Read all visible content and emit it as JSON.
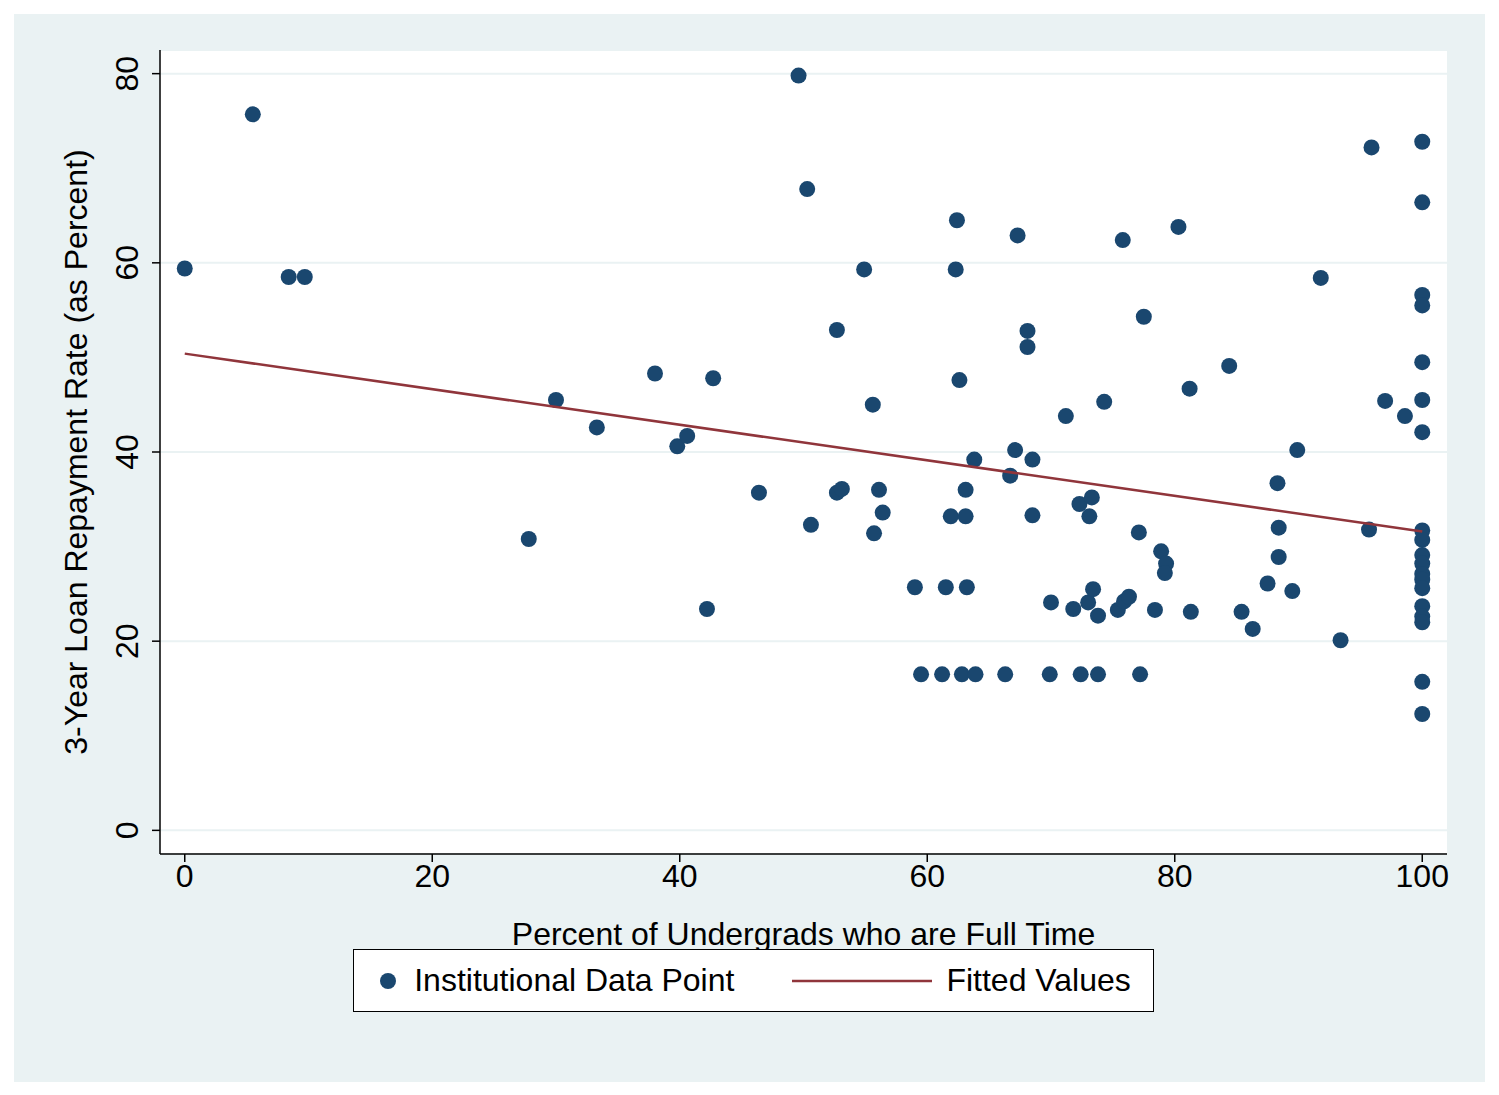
{
  "chart_data": {
    "type": "scatter",
    "x_label": "Percent of Undergrads who are Full Time",
    "y_label": "3-Year Loan Repayment Rate (as Percent)",
    "xlim": [
      -2,
      102
    ],
    "ylim": [
      -2.5,
      82.5
    ],
    "xticks": [
      0,
      20,
      40,
      60,
      80,
      100
    ],
    "yticks": [
      0,
      20,
      40,
      60,
      80
    ],
    "grid": true,
    "legend": "bottom",
    "series": [
      {
        "name": "Institutional Data Point",
        "type": "scatter",
        "color": "#1a476f",
        "marker": "circle",
        "x": [
          0,
          5.5,
          8.4,
          9.7,
          27.8,
          30.0,
          33.3,
          38.0,
          39.8,
          40.6,
          42.2,
          42.7,
          46.4,
          49.6,
          50.3,
          50.6,
          52.7,
          52.7,
          53.1,
          54.9,
          55.6,
          55.7,
          56.1,
          56.4,
          59.0,
          59.5,
          61.2,
          61.5,
          61.9,
          62.3,
          62.4,
          62.6,
          62.8,
          63.1,
          63.1,
          63.2,
          63.9,
          63.8,
          66.3,
          66.7,
          67.1,
          67.3,
          68.1,
          68.1,
          68.5,
          68.5,
          69.9,
          70.0,
          71.2,
          71.8,
          72.3,
          72.4,
          73.0,
          73.1,
          73.3,
          73.4,
          73.8,
          73.8,
          74.3,
          75.4,
          75.8,
          75.9,
          76.3,
          77.1,
          77.2,
          77.5,
          78.4,
          78.9,
          79.3,
          79.2,
          80.3,
          81.2,
          81.3,
          84.4,
          85.4,
          86.3,
          87.5,
          88.3,
          88.4,
          88.4,
          89.5,
          89.9,
          91.8,
          93.4,
          95.7,
          95.9,
          97.0,
          98.6,
          100,
          100,
          100,
          100,
          100,
          100,
          100,
          100,
          100,
          100,
          100,
          100,
          100,
          100,
          100,
          100,
          100,
          100,
          100
        ],
        "values": [
          59.4,
          75.7,
          58.5,
          58.5,
          30.8,
          45.5,
          42.6,
          48.3,
          40.6,
          41.7,
          23.4,
          47.8,
          35.7,
          79.8,
          67.8,
          32.3,
          52.9,
          35.7,
          36.1,
          59.3,
          45.0,
          31.4,
          36.0,
          33.6,
          25.7,
          16.5,
          16.5,
          25.7,
          33.2,
          59.3,
          64.5,
          47.6,
          16.5,
          36.0,
          33.2,
          25.7,
          16.5,
          39.2,
          16.5,
          37.5,
          40.2,
          62.9,
          52.8,
          51.1,
          39.2,
          33.3,
          16.5,
          24.1,
          43.8,
          23.4,
          34.5,
          16.5,
          24.1,
          33.2,
          35.2,
          25.5,
          16.5,
          22.7,
          45.3,
          23.3,
          62.4,
          24.2,
          24.7,
          31.5,
          16.5,
          54.3,
          23.3,
          29.5,
          28.2,
          27.2,
          63.8,
          46.7,
          23.1,
          49.1,
          23.1,
          21.3,
          26.1,
          36.7,
          32.0,
          28.9,
          25.3,
          40.2,
          58.4,
          20.1,
          31.8,
          72.2,
          45.4,
          43.8,
          72.8,
          66.4,
          56.6,
          55.5,
          49.5,
          45.5,
          42.1,
          31.7,
          30.7,
          29.1,
          28.2,
          27.1,
          26.5,
          25.6,
          23.7,
          22.6,
          22.0,
          15.7,
          12.3
        ]
      },
      {
        "name": "Fitted Values",
        "type": "line",
        "color": "#90353b",
        "line_style": "solid",
        "x": [
          0,
          100
        ],
        "values": [
          50.4,
          31.6
        ]
      }
    ]
  }
}
